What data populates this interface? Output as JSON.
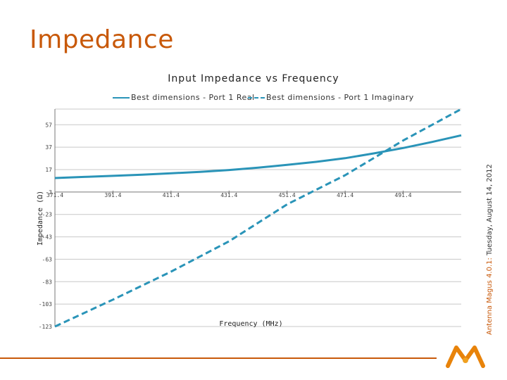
{
  "slide": {
    "title": "Impedance",
    "sidebar_brand": "Antenna Magus 4.0.1:",
    "sidebar_date": " Tuesday, August 14, 2012",
    "accent_color": "#c8590a"
  },
  "chart_data": {
    "type": "line",
    "title": "Input Impedance vs Frequency",
    "xlabel": "Frequency (MHz)",
    "ylabel": "Impedance (Ω)",
    "x_tick_labels": [
      "371.4",
      "391.4",
      "411.4",
      "431.4",
      "451.4",
      "471.4",
      "491.4"
    ],
    "y_tick_labels": [
      "57",
      "37",
      "17",
      "-3",
      "-23",
      "-43",
      "-63",
      "-83",
      "-103",
      "-123"
    ],
    "x_ticks": [
      371.4,
      391.4,
      411.4,
      431.4,
      451.4,
      471.4,
      491.4
    ],
    "y_ticks": [
      57,
      37,
      17,
      -3,
      -23,
      -43,
      -63,
      -83,
      -103,
      -123
    ],
    "xlim": [
      371.4,
      511.4
    ],
    "ylim": [
      -123,
      71
    ],
    "grid": "horizontal",
    "legend_position": "top",
    "line_color": "#2a94b8",
    "series": [
      {
        "name": "Best dimensions - Port 1 Real",
        "style": "solid",
        "x": [
          371.4,
          381.4,
          391.4,
          401.4,
          411.4,
          421.4,
          431.4,
          441.4,
          451.4,
          461.4,
          471.4,
          481.4,
          491.4,
          501.4,
          511.4
        ],
        "y": [
          9.5,
          10.5,
          11.4,
          12.5,
          13.7,
          15.0,
          16.6,
          18.7,
          21.2,
          23.9,
          27.2,
          31.5,
          36.3,
          41.7,
          47.6
        ]
      },
      {
        "name": "Best dimensions - Port 1 Imaginary",
        "style": "dashed",
        "x": [
          371.4,
          391.4,
          411.4,
          431.4,
          451.4,
          471.4,
          491.4,
          511.4
        ],
        "y": [
          -123,
          -99,
          -74,
          -47,
          -14,
          12,
          43,
          71
        ]
      }
    ]
  }
}
